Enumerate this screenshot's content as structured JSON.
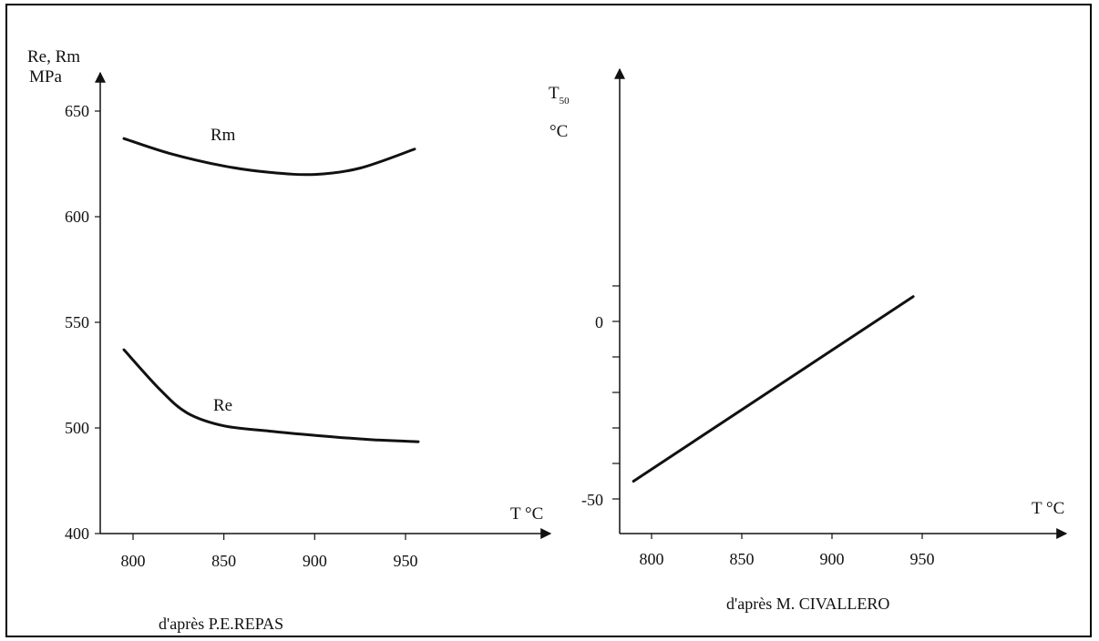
{
  "chart_data": [
    {
      "type": "line",
      "source": "d'après P.E.REPAS",
      "xlabel": "T °C",
      "ylabel_line1": "Re, Rm",
      "ylabel_line2": "MPa",
      "x_ticks": [
        800,
        850,
        900,
        950
      ],
      "y_ticks": [
        400,
        500,
        550,
        600,
        650
      ],
      "series": [
        {
          "name": "Rm",
          "x": [
            795,
            820,
            850,
            875,
            900,
            925,
            955
          ],
          "y": [
            637,
            630,
            624,
            621,
            620,
            623,
            632
          ]
        },
        {
          "name": "Re",
          "x": [
            795,
            815,
            830,
            850,
            875,
            900,
            930,
            957
          ],
          "y": [
            537,
            518,
            507,
            501,
            497,
            493,
            489,
            487
          ]
        }
      ]
    },
    {
      "type": "line",
      "source": "d'après M. CIVALLERO",
      "xlabel": "T °C",
      "ylabel_line1": "T",
      "ylabel_sub": "50",
      "ylabel_line2": "°C",
      "x_ticks": [
        800,
        850,
        900,
        950
      ],
      "y_ticks": [
        -50,
        0
      ],
      "series": [
        {
          "name": "",
          "x": [
            790,
            945
          ],
          "y": [
            -45,
            7
          ]
        }
      ]
    }
  ],
  "colors": {
    "line": "#111111",
    "background": "#ffffff"
  }
}
